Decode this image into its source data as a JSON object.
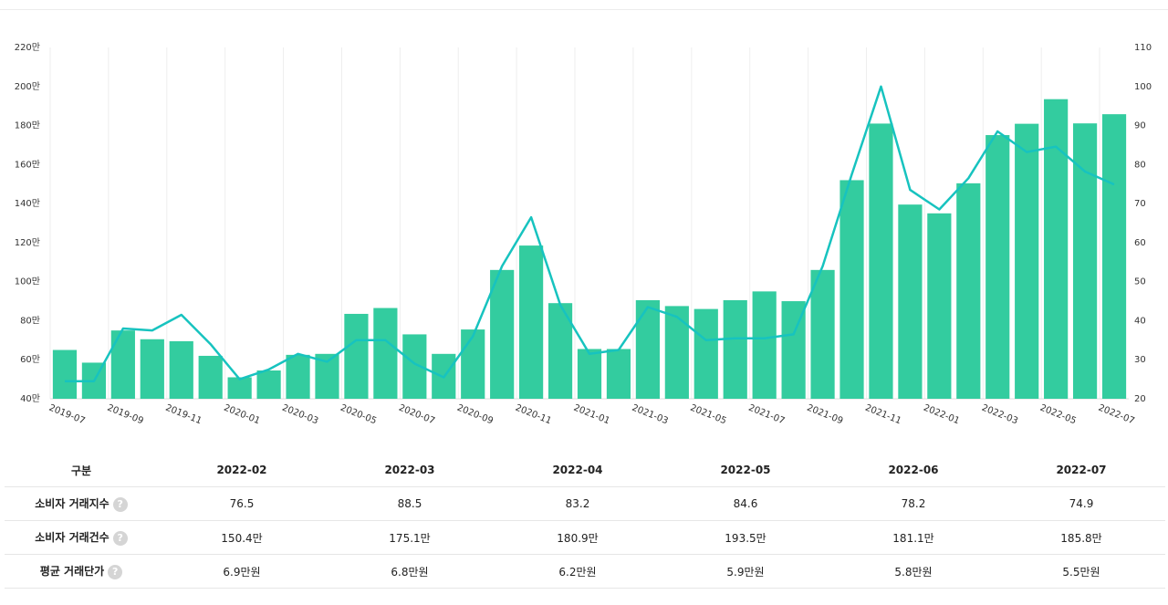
{
  "chart_data": {
    "type": "bar+line",
    "categories": [
      "2019-07",
      "2019-08",
      "2019-09",
      "2019-10",
      "2019-11",
      "2019-12",
      "2020-01",
      "2020-02",
      "2020-03",
      "2020-04",
      "2020-05",
      "2020-06",
      "2020-07",
      "2020-08",
      "2020-09",
      "2020-10",
      "2020-11",
      "2020-12",
      "2021-01",
      "2021-02",
      "2021-03",
      "2021-04",
      "2021-05",
      "2021-06",
      "2021-07",
      "2021-08",
      "2021-09",
      "2021-10",
      "2021-11",
      "2021-12",
      "2022-01",
      "2022-02",
      "2022-03",
      "2022-04",
      "2022-05",
      "2022-06",
      "2022-07"
    ],
    "x_tick_labels": [
      "2019-07",
      "2019-09",
      "2019-11",
      "2020-01",
      "2020-03",
      "2020-05",
      "2020-07",
      "2020-09",
      "2020-11",
      "2021-01",
      "2021-03",
      "2021-05",
      "2021-07",
      "2021-09",
      "2021-11",
      "2022-01",
      "2022-03",
      "2022-05",
      "2022-07"
    ],
    "series": [
      {
        "name": "소비자 거래건수",
        "type": "bar",
        "axis": "left",
        "unit": "만",
        "values": [
          65,
          58.5,
          75,
          70.5,
          69.5,
          62,
          51,
          54.5,
          62.5,
          63,
          83.5,
          86.5,
          73,
          63,
          75.5,
          106,
          118.5,
          89,
          65.5,
          65.5,
          90.5,
          87.5,
          86,
          90.5,
          95,
          90,
          106,
          152,
          181,
          139.5,
          135,
          150.4,
          175.1,
          180.9,
          193.5,
          181.1,
          185.8
        ]
      },
      {
        "name": "소비자 거래지수",
        "type": "line",
        "axis": "right",
        "values": [
          24.5,
          24.5,
          38,
          37.5,
          41.5,
          34,
          25,
          27.5,
          31.5,
          29.5,
          35,
          35,
          29,
          25.5,
          36,
          54,
          66.5,
          44,
          31.5,
          32.5,
          43.5,
          41,
          35,
          35.5,
          35.5,
          36.5,
          54,
          77.5,
          100,
          73.5,
          68.5,
          76.5,
          88.5,
          83.2,
          84.6,
          78.2,
          74.9
        ]
      }
    ],
    "y_left": {
      "min": 40,
      "max": 220,
      "ticks": [
        "40만",
        "60만",
        "80만",
        "100만",
        "120만",
        "140만",
        "160만",
        "180만",
        "200만",
        "220만"
      ]
    },
    "y_right": {
      "min": 20,
      "max": 110,
      "ticks": [
        "20",
        "30",
        "40",
        "50",
        "60",
        "70",
        "80",
        "90",
        "100",
        "110"
      ]
    },
    "colors": {
      "bar": "#33cc9f",
      "line": "#17c3bf",
      "grid": "#eeeeee"
    }
  },
  "table": {
    "header_label": "구분",
    "months": [
      "2022-02",
      "2022-03",
      "2022-04",
      "2022-05",
      "2022-06",
      "2022-07"
    ],
    "rows": [
      {
        "label": "소비자 거래지수",
        "help": "?",
        "values": [
          "76.5",
          "88.5",
          "83.2",
          "84.6",
          "78.2",
          "74.9"
        ]
      },
      {
        "label": "소비자 거래건수",
        "help": "?",
        "values": [
          "150.4만",
          "175.1만",
          "180.9만",
          "193.5만",
          "181.1만",
          "185.8만"
        ]
      },
      {
        "label": "평균 거래단가",
        "help": "?",
        "values": [
          "6.9만원",
          "6.8만원",
          "6.2만원",
          "5.9만원",
          "5.8만원",
          "5.5만원"
        ]
      }
    ]
  }
}
